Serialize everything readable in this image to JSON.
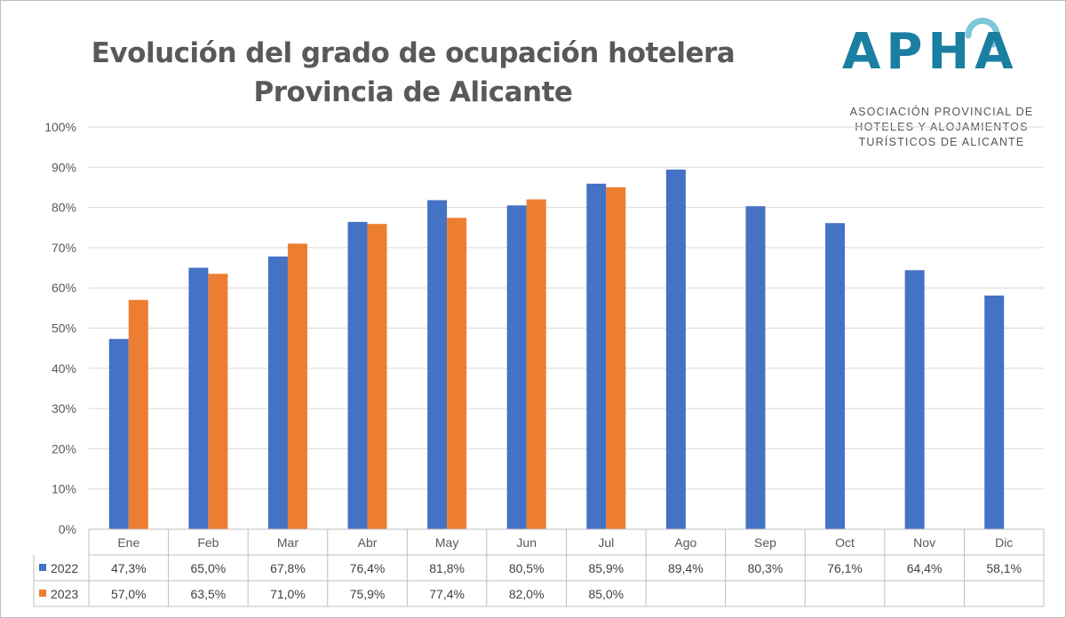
{
  "title": [
    "Evolución del grado de ocupación hotelera",
    "Provincia de Alicante"
  ],
  "logo": {
    "wordmark": "APHA",
    "subtitle": [
      "ASOCIACIÓN PROVINCIAL DE",
      "HOTELES Y ALOJAMIENTOS",
      "TURÍSTICOS DE ALICANTE"
    ],
    "color": "#1a7fa0"
  },
  "chart_data": {
    "type": "bar",
    "categories": [
      "Ene",
      "Feb",
      "Mar",
      "Abr",
      "May",
      "Jun",
      "Jul",
      "Ago",
      "Sep",
      "Oct",
      "Nov",
      "Dic"
    ],
    "series": [
      {
        "name": "2022",
        "color": "#4472c4",
        "values": [
          47.3,
          65.0,
          67.8,
          76.4,
          81.8,
          80.5,
          85.9,
          89.4,
          80.3,
          76.1,
          64.4,
          58.1
        ],
        "labels": [
          "47,3%",
          "65,0%",
          "67,8%",
          "76,4%",
          "81,8%",
          "80,5%",
          "85,9%",
          "89,4%",
          "80,3%",
          "76,1%",
          "64,4%",
          "58,1%"
        ]
      },
      {
        "name": "2023",
        "color": "#ed7d31",
        "values": [
          57.0,
          63.5,
          71.0,
          75.9,
          77.4,
          82.0,
          85.0,
          null,
          null,
          null,
          null,
          null
        ],
        "labels": [
          "57,0%",
          "63,5%",
          "71,0%",
          "75,9%",
          "77,4%",
          "82,0%",
          "85,0%",
          "",
          "",
          "",
          "",
          ""
        ]
      }
    ],
    "ylim": [
      0,
      100
    ],
    "yticks": [
      "0%",
      "10%",
      "20%",
      "30%",
      "40%",
      "50%",
      "60%",
      "70%",
      "80%",
      "90%",
      "100%"
    ],
    "grid": true,
    "data_table": true
  }
}
